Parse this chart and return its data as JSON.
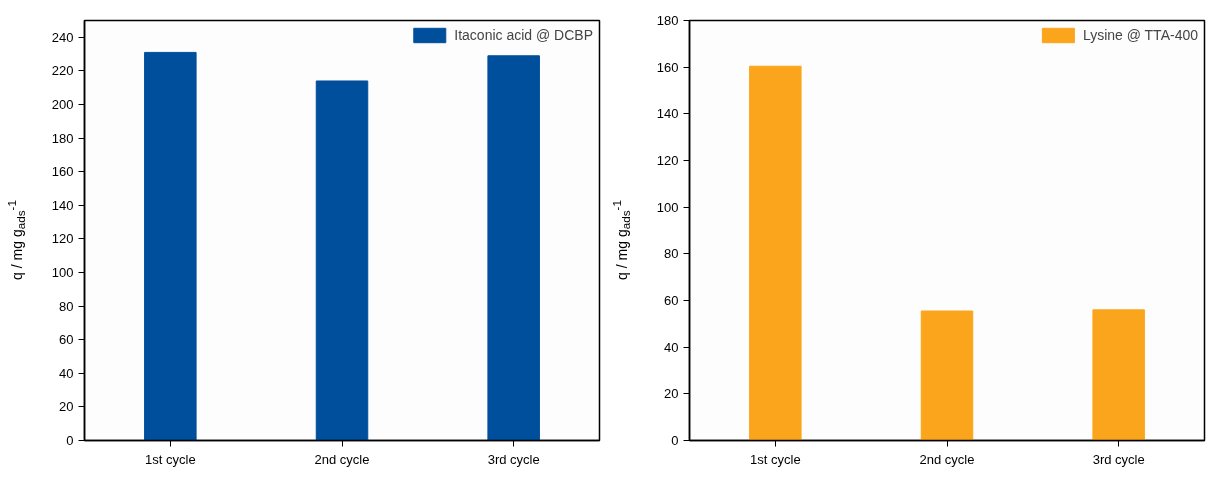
{
  "chart_data": [
    {
      "type": "bar",
      "categories": [
        "1st cycle",
        "2nd cycle",
        "3rd cycle"
      ],
      "series": [
        {
          "name": "Itaconic acid @ DCBP",
          "color": "#004f9c",
          "values": [
            231,
            214,
            229
          ]
        }
      ],
      "ylim": [
        0,
        250
      ],
      "yticks": [
        0,
        20,
        40,
        60,
        80,
        100,
        120,
        140,
        160,
        180,
        200,
        220,
        240
      ],
      "ylabel": "q / mg g$_{ads}$$^{-1}$",
      "legend": "top right",
      "grid": false
    },
    {
      "type": "bar",
      "categories": [
        "1st cycle",
        "2nd cycle",
        "3rd cycle"
      ],
      "series": [
        {
          "name": "Lysine @ TTA-400",
          "color": "#fba51d",
          "values": [
            160.4,
            55.5,
            56
          ]
        }
      ],
      "ylim": [
        0,
        180
      ],
      "yticks": [
        0,
        20,
        40,
        60,
        80,
        100,
        120,
        140,
        160,
        180
      ],
      "ylabel": "q / mg g$_{ads}$$^{-1}$",
      "legend": "top right",
      "grid": false
    }
  ]
}
